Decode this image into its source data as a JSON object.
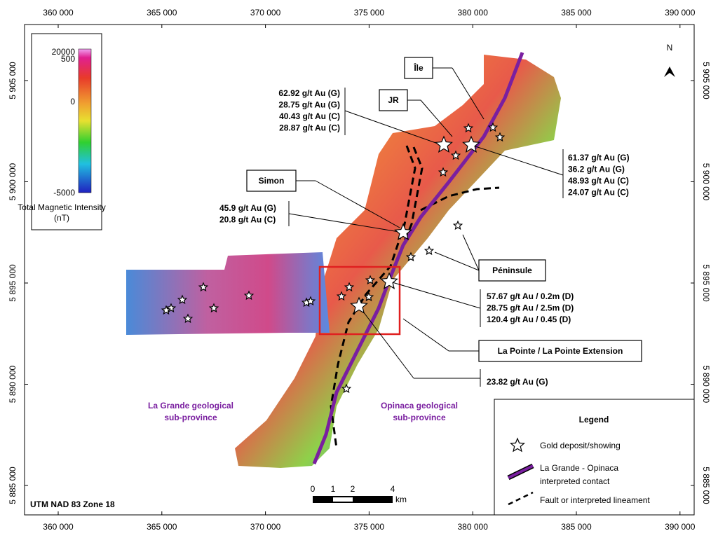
{
  "map": {
    "easting_labels": [
      "360 000",
      "365 000",
      "370 000",
      "375 000",
      "380 000",
      "385 000",
      "390 000"
    ],
    "northing_labels": [
      "5 905 000",
      "5 900 000",
      "5 895 000",
      "5 890 000",
      "5 885 000"
    ],
    "projection": "UTM NAD 83 Zone 18",
    "north": "N"
  },
  "colorbar": {
    "ticks": [
      20000,
      500,
      0,
      -5000
    ],
    "title": "Total Magnetic Intensity",
    "unit": "(nT)"
  },
  "callouts": [
    "Île",
    "JR",
    "Simon",
    "Péninsule",
    "La Pointe / La Pointe Extension"
  ],
  "assays": [
    [
      "62.92 g/t Au (G)",
      "28.75 g/t Au (G)",
      "40.43 g/t Au (C)",
      "28.87 g/t Au (C)"
    ],
    [
      "61.37 g/t Au (G)",
      "36.2 g/t Au (G)",
      "48.93 g/t Au (C)",
      "24.07 g/t Au (C)"
    ],
    [
      "45.9 g/t Au (G)",
      "20.8 g/t Au (C)"
    ],
    [
      "57.67 g/t Au / 0.2m (D)",
      "28.75 g/t Au / 2.5m (D)",
      "120.4 g/t Au / 0.45 (D)"
    ],
    [
      "23.82 g/t Au (G)"
    ]
  ],
  "regions": [
    [
      "La Grande geological",
      "sub-province"
    ],
    [
      "Opinaca geological",
      "sub-province"
    ]
  ],
  "legend": {
    "title": "Legend",
    "items": [
      [
        "Gold deposit/showing"
      ],
      [
        "La Grande - Opinaca",
        "interpreted contact"
      ],
      [
        "Fault or interpreted lineament"
      ]
    ]
  },
  "scale_bar": {
    "ticks": [
      "0",
      "1",
      "2",
      "4"
    ],
    "unit": "km"
  }
}
